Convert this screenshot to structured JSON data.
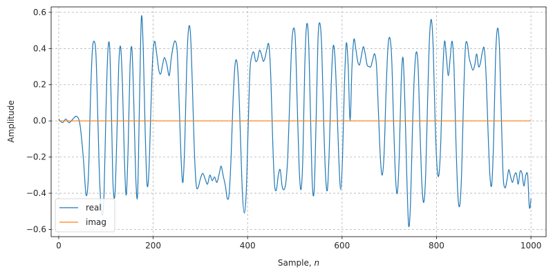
{
  "chart_data": {
    "type": "line",
    "xlabel": "Sample, ",
    "xlabel_var": "n",
    "ylabel": "Amplitude",
    "xlim": [
      -16,
      1032
    ],
    "ylim": [
      -0.64,
      0.63
    ],
    "x_ticks": [
      0,
      200,
      400,
      600,
      800,
      1000
    ],
    "x_tick_labels": [
      "0",
      "200",
      "400",
      "600",
      "800",
      "1000"
    ],
    "y_ticks": [
      -0.6,
      -0.4,
      -0.2,
      0.0,
      0.2,
      0.4,
      0.6
    ],
    "y_tick_labels": [
      "−0.6",
      "−0.4",
      "−0.2",
      "0.0",
      "0.2",
      "0.4",
      "0.6"
    ],
    "grid": true,
    "legend_position": "lower-left",
    "series": [
      {
        "name": "real",
        "color": "#1f77b4",
        "points": [
          [
            0,
            0.01
          ],
          [
            8,
            -0.01
          ],
          [
            15,
            0.01
          ],
          [
            22,
            -0.01
          ],
          [
            30,
            0.01
          ],
          [
            38,
            0.025
          ],
          [
            45,
            -0.02
          ],
          [
            52,
            -0.2
          ],
          [
            58,
            -0.41
          ],
          [
            63,
            -0.3
          ],
          [
            67,
            0.1
          ],
          [
            71,
            0.38
          ],
          [
            75,
            0.44
          ],
          [
            79,
            0.36
          ],
          [
            83,
            0.0
          ],
          [
            87,
            -0.35
          ],
          [
            92,
            -0.52
          ],
          [
            96,
            -0.4
          ],
          [
            100,
            0.05
          ],
          [
            104,
            0.38
          ],
          [
            108,
            0.4
          ],
          [
            112,
            0.0
          ],
          [
            115,
            -0.35
          ],
          [
            119,
            -0.41
          ],
          [
            123,
            -0.1
          ],
          [
            127,
            0.3
          ],
          [
            131,
            0.41
          ],
          [
            135,
            0.2
          ],
          [
            139,
            -0.2
          ],
          [
            143,
            -0.41
          ],
          [
            147,
            -0.15
          ],
          [
            151,
            0.3
          ],
          [
            155,
            0.4
          ],
          [
            159,
            0.1
          ],
          [
            163,
            -0.3
          ],
          [
            167,
            -0.41
          ],
          [
            171,
            0.1
          ],
          [
            175,
            0.57
          ],
          [
            179,
            0.4
          ],
          [
            183,
            -0.05
          ],
          [
            187,
            -0.35
          ],
          [
            191,
            -0.28
          ],
          [
            195,
            0.05
          ],
          [
            199,
            0.35
          ],
          [
            203,
            0.44
          ],
          [
            207,
            0.38
          ],
          [
            212,
            0.28
          ],
          [
            216,
            0.26
          ],
          [
            220,
            0.31
          ],
          [
            224,
            0.35
          ],
          [
            229,
            0.31
          ],
          [
            234,
            0.25
          ],
          [
            238,
            0.34
          ],
          [
            243,
            0.42
          ],
          [
            247,
            0.44
          ],
          [
            251,
            0.38
          ],
          [
            255,
            0.1
          ],
          [
            259,
            -0.2
          ],
          [
            263,
            -0.34
          ],
          [
            267,
            -0.12
          ],
          [
            271,
            0.3
          ],
          [
            275,
            0.51
          ],
          [
            279,
            0.48
          ],
          [
            283,
            0.2
          ],
          [
            287,
            -0.15
          ],
          [
            291,
            -0.35
          ],
          [
            295,
            -0.37
          ],
          [
            300,
            -0.32
          ],
          [
            305,
            -0.29
          ],
          [
            310,
            -0.32
          ],
          [
            315,
            -0.35
          ],
          [
            320,
            -0.3
          ],
          [
            325,
            -0.33
          ],
          [
            330,
            -0.31
          ],
          [
            335,
            -0.34
          ],
          [
            340,
            -0.29
          ],
          [
            344,
            -0.25
          ],
          [
            348,
            -0.3
          ],
          [
            353,
            -0.36
          ],
          [
            357,
            -0.43
          ],
          [
            361,
            -0.4
          ],
          [
            365,
            -0.2
          ],
          [
            369,
            0.1
          ],
          [
            373,
            0.3
          ],
          [
            377,
            0.33
          ],
          [
            381,
            0.2
          ],
          [
            385,
            -0.1
          ],
          [
            389,
            -0.4
          ],
          [
            393,
            -0.51
          ],
          [
            397,
            -0.4
          ],
          [
            401,
            -0.05
          ],
          [
            405,
            0.28
          ],
          [
            409,
            0.36
          ],
          [
            413,
            0.38
          ],
          [
            417,
            0.33
          ],
          [
            421,
            0.34
          ],
          [
            425,
            0.39
          ],
          [
            429,
            0.37
          ],
          [
            433,
            0.33
          ],
          [
            437,
            0.35
          ],
          [
            441,
            0.4
          ],
          [
            445,
            0.42
          ],
          [
            449,
            0.25
          ],
          [
            453,
            -0.1
          ],
          [
            457,
            -0.35
          ],
          [
            461,
            -0.38
          ],
          [
            465,
            -0.3
          ],
          [
            469,
            -0.27
          ],
          [
            473,
            -0.36
          ],
          [
            477,
            -0.38
          ],
          [
            481,
            -0.34
          ],
          [
            485,
            -0.2
          ],
          [
            489,
            0.1
          ],
          [
            493,
            0.4
          ],
          [
            497,
            0.51
          ],
          [
            501,
            0.45
          ],
          [
            505,
            0.1
          ],
          [
            509,
            -0.25
          ],
          [
            513,
            -0.38
          ],
          [
            517,
            -0.2
          ],
          [
            521,
            0.3
          ],
          [
            525,
            0.53
          ],
          [
            529,
            0.45
          ],
          [
            533,
            0.05
          ],
          [
            537,
            -0.35
          ],
          [
            541,
            -0.38
          ],
          [
            545,
            0.0
          ],
          [
            549,
            0.45
          ],
          [
            553,
            0.54
          ],
          [
            557,
            0.4
          ],
          [
            561,
            0.0
          ],
          [
            565,
            -0.3
          ],
          [
            569,
            -0.38
          ],
          [
            573,
            -0.15
          ],
          [
            577,
            0.2
          ],
          [
            581,
            0.41
          ],
          [
            585,
            0.35
          ],
          [
            589,
            0.1
          ],
          [
            593,
            -0.2
          ],
          [
            597,
            -0.38
          ],
          [
            601,
            -0.2
          ],
          [
            605,
            0.2
          ],
          [
            609,
            0.43
          ],
          [
            613,
            0.3
          ],
          [
            617,
            0.0
          ],
          [
            621,
            0.3
          ],
          [
            625,
            0.45
          ],
          [
            629,
            0.4
          ],
          [
            633,
            0.33
          ],
          [
            637,
            0.31
          ],
          [
            641,
            0.36
          ],
          [
            645,
            0.41
          ],
          [
            649,
            0.37
          ],
          [
            653,
            0.31
          ],
          [
            657,
            0.3
          ],
          [
            661,
            0.3
          ],
          [
            665,
            0.34
          ],
          [
            669,
            0.37
          ],
          [
            673,
            0.3
          ],
          [
            677,
            0.05
          ],
          [
            681,
            -0.2
          ],
          [
            685,
            -0.3
          ],
          [
            689,
            -0.18
          ],
          [
            693,
            0.15
          ],
          [
            697,
            0.4
          ],
          [
            701,
            0.46
          ],
          [
            705,
            0.35
          ],
          [
            709,
            0.0
          ],
          [
            713,
            -0.3
          ],
          [
            717,
            -0.4
          ],
          [
            721,
            -0.2
          ],
          [
            725,
            0.2
          ],
          [
            729,
            0.35
          ],
          [
            733,
            0.1
          ],
          [
            737,
            -0.3
          ],
          [
            741,
            -0.58
          ],
          [
            745,
            -0.45
          ],
          [
            749,
            -0.05
          ],
          [
            753,
            0.25
          ],
          [
            757,
            0.38
          ],
          [
            761,
            0.3
          ],
          [
            765,
            -0.05
          ],
          [
            769,
            -0.35
          ],
          [
            773,
            -0.45
          ],
          [
            777,
            -0.3
          ],
          [
            781,
            0.1
          ],
          [
            785,
            0.45
          ],
          [
            789,
            0.56
          ],
          [
            793,
            0.4
          ],
          [
            797,
            0.0
          ],
          [
            801,
            -0.25
          ],
          [
            805,
            -0.3
          ],
          [
            809,
            -0.12
          ],
          [
            813,
            0.25
          ],
          [
            817,
            0.44
          ],
          [
            821,
            0.35
          ],
          [
            825,
            0.25
          ],
          [
            829,
            0.35
          ],
          [
            833,
            0.44
          ],
          [
            837,
            0.3
          ],
          [
            841,
            -0.1
          ],
          [
            845,
            -0.4
          ],
          [
            849,
            -0.47
          ],
          [
            853,
            -0.3
          ],
          [
            857,
            0.1
          ],
          [
            861,
            0.4
          ],
          [
            865,
            0.43
          ],
          [
            869,
            0.35
          ],
          [
            873,
            0.31
          ],
          [
            877,
            0.28
          ],
          [
            881,
            0.31
          ],
          [
            885,
            0.37
          ],
          [
            889,
            0.3
          ],
          [
            893,
            0.32
          ],
          [
            897,
            0.38
          ],
          [
            901,
            0.4
          ],
          [
            905,
            0.25
          ],
          [
            909,
            -0.05
          ],
          [
            913,
            -0.3
          ],
          [
            917,
            -0.35
          ],
          [
            921,
            -0.1
          ],
          [
            925,
            0.35
          ],
          [
            929,
            0.51
          ],
          [
            933,
            0.42
          ],
          [
            937,
            0.05
          ],
          [
            941,
            -0.3
          ],
          [
            945,
            -0.37
          ],
          [
            949,
            -0.33
          ],
          [
            953,
            -0.27
          ],
          [
            957,
            -0.31
          ],
          [
            961,
            -0.34
          ],
          [
            965,
            -0.3
          ],
          [
            969,
            -0.29
          ],
          [
            973,
            -0.35
          ],
          [
            977,
            -0.28
          ],
          [
            981,
            -0.29
          ],
          [
            985,
            -0.36
          ],
          [
            989,
            -0.3
          ],
          [
            993,
            -0.3
          ],
          [
            996,
            -0.46
          ],
          [
            998,
            -0.48
          ],
          [
            1000,
            -0.43
          ]
        ]
      },
      {
        "name": "imag",
        "color": "#ff7f0e",
        "points": [
          [
            0,
            0.0
          ],
          [
            1000,
            0.0
          ]
        ]
      }
    ]
  }
}
